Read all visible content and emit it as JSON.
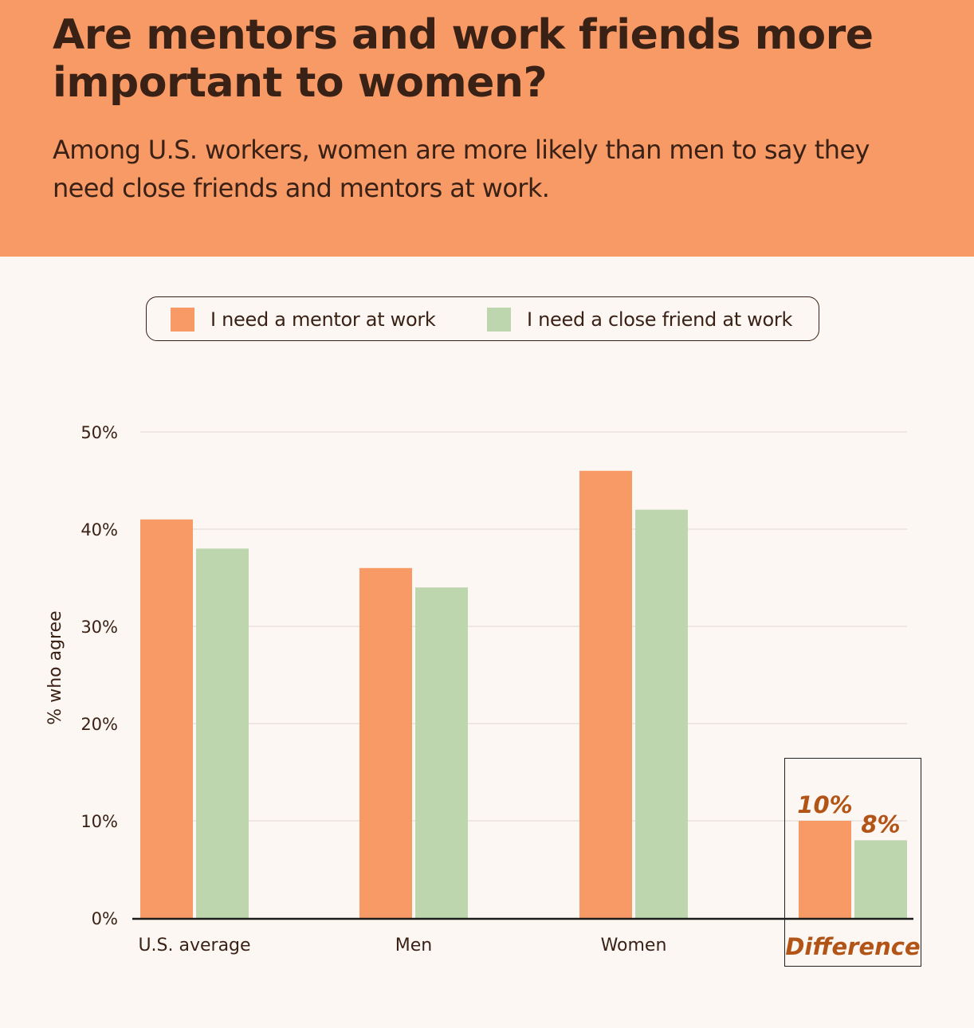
{
  "header": {
    "title": "Are mentors and work friends more important to women?",
    "subtitle": "Among U.S. workers, women are more likely than men to say they need close friends and mentors at work."
  },
  "colors": {
    "header_bg": "#f89a66",
    "mentor": "#f89a66",
    "friend": "#bdd6ae",
    "difference_text": "#b35417",
    "page_bg": "#fdf7f3"
  },
  "chart_data": {
    "type": "bar",
    "categories": [
      "U.S. average",
      "Men",
      "Women",
      "Difference"
    ],
    "series": [
      {
        "name": "I need a mentor at work",
        "values": [
          41,
          36,
          46,
          10
        ]
      },
      {
        "name": "I need a close friend at work",
        "values": [
          38,
          34,
          42,
          8
        ]
      }
    ],
    "data_labels": {
      "Difference": [
        "10%",
        "8%"
      ]
    },
    "ylabel": "% who agree",
    "xlabel": "",
    "ylim": [
      0,
      50
    ],
    "yticks": [
      0,
      10,
      20,
      30,
      40,
      50
    ],
    "ytick_labels": [
      "0%",
      "10%",
      "20%",
      "30%",
      "40%",
      "50%"
    ],
    "grid": true,
    "legend_position": "top"
  }
}
